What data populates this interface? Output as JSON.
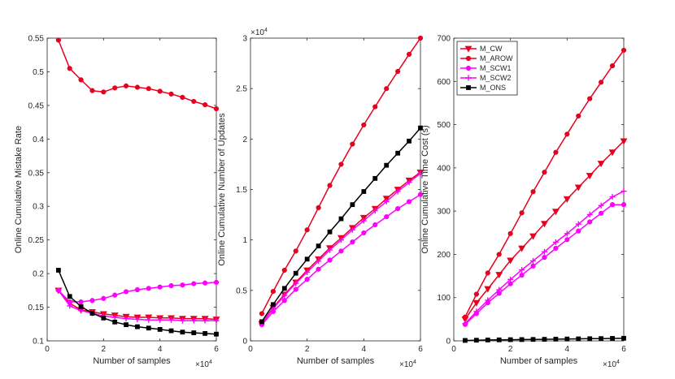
{
  "chart_data": [
    {
      "type": "line",
      "title": "",
      "xlabel": "Number of samples",
      "ylabel": "Online Cumulative Mistake Rate",
      "x_multiplier": "×10^4",
      "xlim": [
        0,
        6
      ],
      "ylim": [
        0.1,
        0.55
      ],
      "xticks": [
        0,
        2,
        4,
        6
      ],
      "yticks": [
        0.1,
        0.15,
        0.2,
        0.25,
        0.3,
        0.35,
        0.4,
        0.45,
        0.5,
        0.55
      ],
      "x": [
        0.4,
        0.8,
        1.2,
        1.6,
        2.0,
        2.4,
        2.8,
        3.2,
        3.6,
        4.0,
        4.4,
        4.8,
        5.2,
        5.6,
        6.0
      ],
      "series": [
        {
          "name": "M_CW",
          "color": "#e8001e",
          "marker": "triangle",
          "values": [
            0.175,
            0.156,
            0.146,
            0.143,
            0.14,
            0.138,
            0.136,
            0.135,
            0.135,
            0.134,
            0.134,
            0.133,
            0.133,
            0.133,
            0.132
          ]
        },
        {
          "name": "M_AROW",
          "color": "#e8001e",
          "marker": "circle",
          "values": [
            0.547,
            0.505,
            0.488,
            0.472,
            0.47,
            0.476,
            0.479,
            0.477,
            0.475,
            0.471,
            0.467,
            0.462,
            0.456,
            0.451,
            0.445
          ]
        },
        {
          "name": "M_SCW1",
          "color": "#ff00ff",
          "marker": "circle",
          "values": [
            0.175,
            0.158,
            0.158,
            0.16,
            0.163,
            0.168,
            0.173,
            0.176,
            0.178,
            0.18,
            0.182,
            0.183,
            0.185,
            0.186,
            0.187
          ]
        },
        {
          "name": "M_SCW2",
          "color": "#ff00ff",
          "marker": "plus",
          "values": [
            0.175,
            0.152,
            0.145,
            0.141,
            0.137,
            0.135,
            0.133,
            0.132,
            0.131,
            0.131,
            0.131,
            0.13,
            0.13,
            0.13,
            0.13
          ]
        },
        {
          "name": "M_ONS",
          "color": "#000000",
          "marker": "square",
          "values": [
            0.205,
            0.166,
            0.151,
            0.141,
            0.134,
            0.128,
            0.124,
            0.121,
            0.119,
            0.117,
            0.115,
            0.113,
            0.112,
            0.111,
            0.11
          ]
        }
      ]
    },
    {
      "type": "line",
      "title": "",
      "xlabel": "Number of samples",
      "ylabel": "Online Cumulative Number of Updates",
      "x_multiplier": "×10^4",
      "y_multiplier": "×10^4",
      "xlim": [
        0,
        6
      ],
      "ylim": [
        0,
        3
      ],
      "xticks": [
        0,
        2,
        4,
        6
      ],
      "yticks": [
        0,
        0.5,
        1,
        1.5,
        2,
        2.5,
        3
      ],
      "ytick_labels": [
        "0",
        "0.5",
        "1",
        "1.5",
        "2",
        "2.5",
        "3"
      ],
      "x": [
        0.4,
        0.8,
        1.2,
        1.6,
        2.0,
        2.4,
        2.8,
        3.2,
        3.6,
        4.0,
        4.4,
        4.8,
        5.2,
        5.6,
        6.0
      ],
      "series": [
        {
          "name": "M_CW",
          "color": "#e8001e",
          "marker": "triangle",
          "values": [
            0.17,
            0.33,
            0.46,
            0.58,
            0.7,
            0.81,
            0.92,
            1.02,
            1.12,
            1.22,
            1.31,
            1.41,
            1.5,
            1.59,
            1.67
          ]
        },
        {
          "name": "M_AROW",
          "color": "#e8001e",
          "marker": "circle",
          "values": [
            0.27,
            0.49,
            0.7,
            0.89,
            1.1,
            1.32,
            1.54,
            1.75,
            1.95,
            2.14,
            2.32,
            2.5,
            2.67,
            2.84,
            3.0
          ]
        },
        {
          "name": "M_SCW1",
          "color": "#ff00ff",
          "marker": "circle",
          "values": [
            0.16,
            0.29,
            0.4,
            0.51,
            0.61,
            0.71,
            0.8,
            0.89,
            0.98,
            1.07,
            1.15,
            1.23,
            1.31,
            1.38,
            1.45
          ]
        },
        {
          "name": "M_SCW2",
          "color": "#ff00ff",
          "marker": "plus",
          "values": [
            0.17,
            0.32,
            0.45,
            0.57,
            0.68,
            0.79,
            0.9,
            1.0,
            1.1,
            1.19,
            1.29,
            1.38,
            1.48,
            1.57,
            1.66
          ]
        },
        {
          "name": "M_ONS",
          "color": "#000000",
          "marker": "square",
          "values": [
            0.19,
            0.36,
            0.52,
            0.67,
            0.81,
            0.94,
            1.08,
            1.21,
            1.35,
            1.48,
            1.61,
            1.74,
            1.86,
            1.98,
            2.11
          ]
        }
      ]
    },
    {
      "type": "line",
      "title": "",
      "xlabel": "Number of samples",
      "ylabel": "Online Cumulative Time Cost (s)",
      "x_multiplier": "×10^4",
      "xlim": [
        0,
        6
      ],
      "ylim": [
        0,
        700
      ],
      "xticks": [
        0,
        2,
        4,
        6
      ],
      "yticks": [
        0,
        100,
        200,
        300,
        400,
        500,
        600,
        700
      ],
      "legend_position": "top-left",
      "x": [
        0.4,
        0.8,
        1.2,
        1.6,
        2.0,
        2.4,
        2.8,
        3.2,
        3.6,
        4.0,
        4.4,
        4.8,
        5.2,
        5.6,
        6.0
      ],
      "series": [
        {
          "name": "M_CW",
          "color": "#e8001e",
          "marker": "triangle",
          "values": [
            50,
            88,
            120,
            153,
            186,
            214,
            242,
            271,
            299,
            328,
            355,
            382,
            410,
            436,
            462
          ]
        },
        {
          "name": "M_AROW",
          "color": "#e8001e",
          "marker": "circle",
          "values": [
            55,
            108,
            157,
            200,
            248,
            296,
            345,
            390,
            436,
            478,
            520,
            560,
            598,
            636,
            672
          ]
        },
        {
          "name": "M_SCW1",
          "color": "#ff00ff",
          "marker": "circle",
          "values": [
            38,
            63,
            88,
            110,
            132,
            152,
            173,
            193,
            214,
            234,
            254,
            275,
            295,
            315,
            315
          ]
        },
        {
          "name": "M_SCW2",
          "color": "#ff00ff",
          "marker": "plus",
          "values": [
            40,
            68,
            94,
            118,
            142,
            164,
            185,
            206,
            228,
            248,
            270,
            292,
            313,
            333,
            346
          ]
        },
        {
          "name": "M_ONS",
          "color": "#000000",
          "marker": "square",
          "values": [
            1,
            1.5,
            2,
            2.3,
            2.7,
            3,
            3.3,
            3.6,
            4,
            4.3,
            4.6,
            5,
            5.3,
            5.7,
            6
          ]
        }
      ]
    }
  ]
}
